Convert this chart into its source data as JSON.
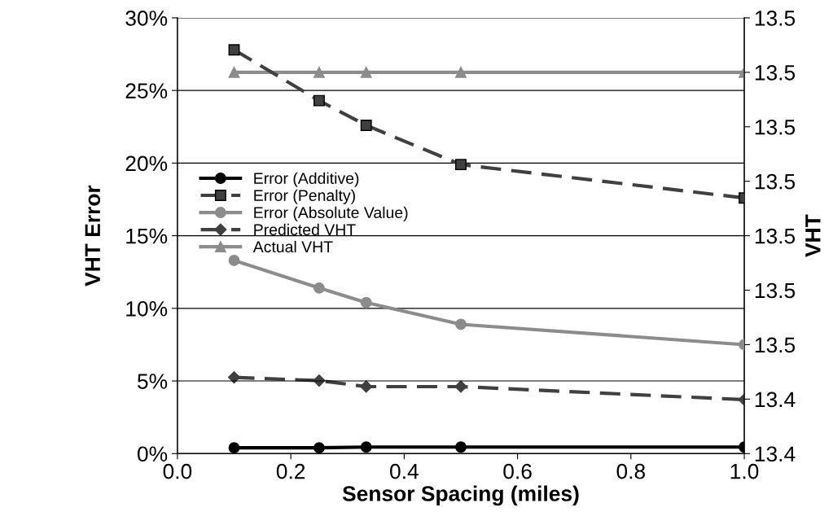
{
  "chart_data": {
    "type": "line",
    "xlabel": "Sensor Spacing (miles)",
    "ylabel": "VHT Error",
    "y2label": "VHT",
    "x": [
      0.1,
      0.25,
      0.333,
      0.5,
      1.0
    ],
    "series": [
      {
        "name": "Error (Additive)",
        "color": "#000000",
        "marker": "circle",
        "line_style": "solid",
        "values": [
          0.4,
          0.4,
          0.45,
          0.45,
          0.45
        ]
      },
      {
        "name": "Error (Penalty)",
        "color": "#404040",
        "marker": "square",
        "line_style": "dashed",
        "values": [
          27.8,
          24.3,
          22.6,
          19.9,
          17.6
        ]
      },
      {
        "name": "Error (Absolute Value)",
        "color": "#8c8c8c",
        "marker": "circle",
        "line_style": "solid",
        "values": [
          13.3,
          11.4,
          10.4,
          8.9,
          7.5
        ]
      },
      {
        "name": "Predicted VHT",
        "color": "#404040",
        "marker": "diamond",
        "line_style": "dashed",
        "axis": "y2",
        "values": [
          13.444,
          13.4434,
          13.4423,
          13.4423,
          13.4399
        ]
      },
      {
        "name": "Actual VHT",
        "color": "#8c8c8c",
        "marker": "triangle",
        "line_style": "solid",
        "axis": "y2",
        "values": [
          13.5,
          13.5,
          13.5,
          13.5,
          13.5
        ]
      }
    ],
    "xlim": [
      0,
      1
    ],
    "xticks": [
      {
        "value": 0,
        "label": "0.0"
      },
      {
        "value": 0.2,
        "label": "0.2"
      },
      {
        "value": 0.4,
        "label": "0.4"
      },
      {
        "value": 0.6,
        "label": "0.6"
      },
      {
        "value": 0.8,
        "label": "0.8"
      },
      {
        "value": 1.0,
        "label": "1.0"
      }
    ],
    "ylim": [
      0,
      30
    ],
    "yticks": [
      {
        "value": 0,
        "label": "0%"
      },
      {
        "value": 5,
        "label": "5%"
      },
      {
        "value": 10,
        "label": "10%"
      },
      {
        "value": 15,
        "label": "15%"
      },
      {
        "value": 20,
        "label": "20%"
      },
      {
        "value": 25,
        "label": "25%"
      },
      {
        "value": 30,
        "label": "30%"
      }
    ],
    "y2lim": [
      13.43,
      13.51
    ],
    "y2ticks": [
      {
        "value": 13.43,
        "label": "13.4"
      },
      {
        "value": 13.44,
        "label": "13.4"
      },
      {
        "value": 13.45,
        "label": "13.5"
      },
      {
        "value": 13.46,
        "label": "13.5"
      },
      {
        "value": 13.47,
        "label": "13.5"
      },
      {
        "value": 13.48,
        "label": "13.5"
      },
      {
        "value": 13.49,
        "label": "13.5"
      },
      {
        "value": 13.5,
        "label": "13.5"
      },
      {
        "value": 13.51,
        "label": "13.5"
      }
    ],
    "grid": "y",
    "legend": "left"
  }
}
